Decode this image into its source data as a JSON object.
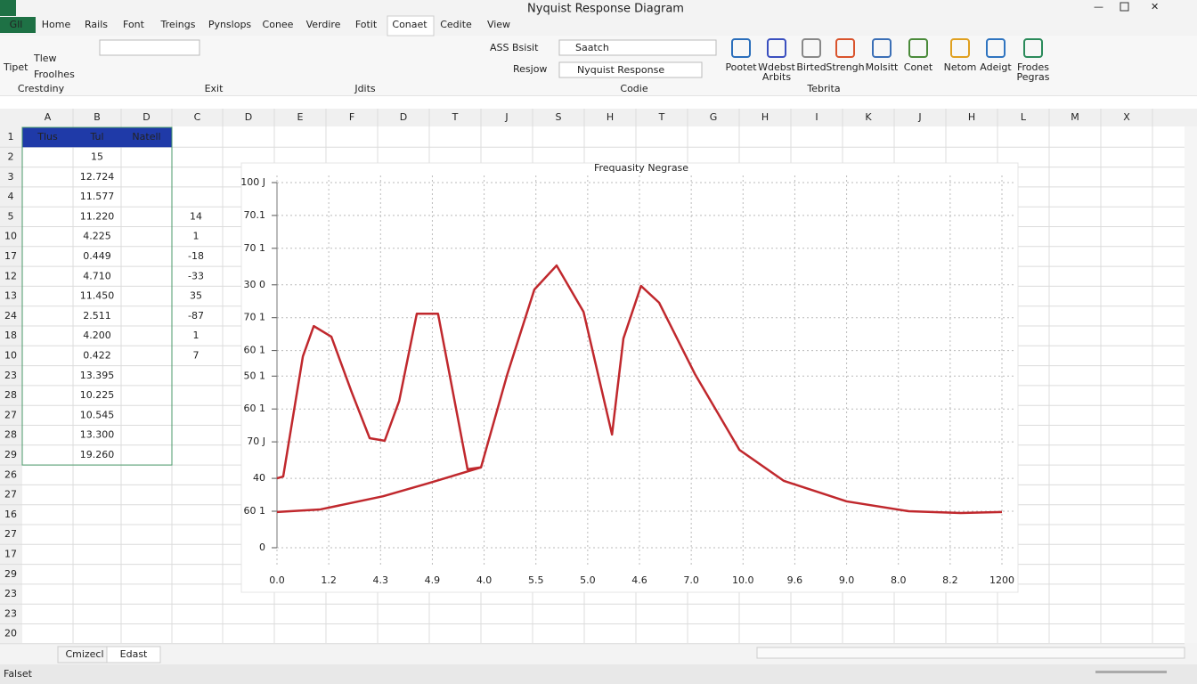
{
  "window": {
    "title": "Nyquist Response Diagram"
  },
  "ribbon": {
    "tabs": [
      "Gll",
      "Home",
      "Rails",
      "Font",
      "Treings",
      "Pynslops",
      "Conee",
      "Verdire",
      "Fotit",
      "Conaet",
      "Cedite",
      "View"
    ],
    "left_items": [
      "Tipet",
      "Tlew",
      "Froolhes"
    ],
    "group_labels": [
      "Crestdiny",
      "Exit",
      "Jdits",
      "Codie",
      "Tebrita"
    ],
    "buttons": [
      "ASS Bsisit",
      "Resjow",
      "Saatch",
      "Nyquist Response"
    ],
    "icons": [
      "Pootet",
      "Wdebst Arbits",
      "Birted",
      "Strengh",
      "Molsitt",
      "Conet",
      "Netom",
      "Adeigt",
      "Frodes Pegras"
    ]
  },
  "sheet": {
    "columns": [
      "A",
      "B",
      "D",
      "C",
      "D",
      "E",
      "F",
      "D",
      "T",
      "J",
      "S",
      "H",
      "T",
      "G",
      "H",
      "I",
      "K",
      "J",
      "H",
      "L",
      "M",
      "X"
    ],
    "rows": [
      "1",
      "2",
      "3",
      "4",
      "5",
      "10",
      "17",
      "12",
      "13",
      "24",
      "18",
      "10",
      "23",
      "28",
      "27",
      "28",
      "29",
      "26",
      "27",
      "16",
      "27",
      "17",
      "29",
      "23",
      "23",
      "20"
    ],
    "header": [
      "Tlus",
      "Tul",
      "Natell"
    ],
    "col_b": [
      "15",
      "12.724",
      "11.577",
      "11.220",
      "4.225",
      "0.449",
      "4.710",
      "11.450",
      "2.511",
      "4.200",
      "0.422",
      "13.395",
      "10.225",
      "10.545",
      "13.300",
      "19.260"
    ],
    "col_c": [
      "14",
      "1",
      "-18",
      "-33",
      "35",
      "-87",
      "1",
      "7"
    ]
  },
  "chart_data": {
    "type": "line",
    "title": "Frequasity Negrase",
    "xlim": [
      0,
      14
    ],
    "xticks": [
      {
        "value": 0,
        "label": "0.0"
      },
      {
        "value": 1,
        "label": "1.2"
      },
      {
        "value": 2,
        "label": "4.3"
      },
      {
        "value": 3,
        "label": "4.9"
      },
      {
        "value": 4,
        "label": "4.0"
      },
      {
        "value": 5,
        "label": "5.5"
      },
      {
        "value": 6,
        "label": "5.0"
      },
      {
        "value": 7,
        "label": "4.6"
      },
      {
        "value": 8,
        "label": "7.0"
      },
      {
        "value": 9,
        "label": "10.0"
      },
      {
        "value": 10,
        "label": "9.6"
      },
      {
        "value": 11,
        "label": "9.0"
      },
      {
        "value": 12,
        "label": "8.0"
      },
      {
        "value": 13,
        "label": "8.2"
      },
      {
        "value": 14,
        "label": "1200"
      }
    ],
    "ylim": [
      0,
      10
    ],
    "yticks": [
      0,
      {
        "value": 1.0,
        "label": "60 1"
      },
      {
        "value": 1.9,
        "label": "40"
      },
      {
        "value": 2.9,
        "label": "70 J"
      },
      {
        "value": 3.8,
        "label": "60 1"
      },
      {
        "value": 4.7,
        "label": "50 1"
      },
      {
        "value": 5.4,
        "label": "60 1"
      },
      {
        "value": 6.3,
        "label": "70 1"
      },
      {
        "value": 7.2,
        "label": "30 0"
      },
      {
        "value": 8.2,
        "label": "70 1"
      },
      {
        "value": 9.1,
        "label": "70.1"
      },
      {
        "value": 10,
        "label": "100 J"
      }
    ],
    "grid": true,
    "series": [
      {
        "color": "#c0282d",
        "x": [
          0,
          0.12,
          0.5,
          0.71,
          1.05,
          1.44,
          1.79,
          2.08,
          2.36,
          2.7,
          3.11,
          3.68,
          3.94,
          4.45,
          4.97,
          5.4,
          5.92,
          6.47,
          6.69,
          7.03,
          7.38,
          8.07,
          8.93,
          9.79,
          11.0,
          12.2,
          13.2,
          14
        ],
        "values": [
          1.9,
          1.95,
          5.24,
          6.07,
          5.78,
          4.27,
          3.0,
          2.93,
          4.02,
          6.41,
          6.41,
          2.15,
          2.2,
          4.76,
          7.07,
          7.73,
          6.46,
          3.1,
          5.73,
          7.17,
          6.71,
          4.76,
          2.68,
          1.83,
          1.27,
          1.0,
          0.95,
          0.98
        ]
      },
      {
        "color": "#c0282d",
        "x": [
          0,
          0.84,
          2.05,
          2.91,
          3.94
        ],
        "values": [
          0.98,
          1.05,
          1.41,
          1.76,
          2.2
        ]
      }
    ]
  },
  "sheet_tabs": [
    "Cmizecl",
    "Edast"
  ],
  "status": {
    "text": "Falset"
  }
}
